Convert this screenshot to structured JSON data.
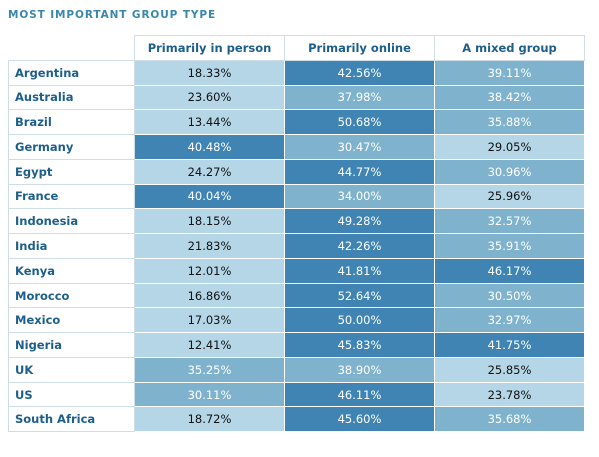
{
  "title": "MOST IMPORTANT GROUP TYPE",
  "chart_data": {
    "type": "table",
    "columns": [
      "Primarily in person",
      "Primarily online",
      "A mixed group"
    ],
    "rows": [
      {
        "country": "Argentina",
        "values": [
          "18.33%",
          "42.56%",
          "39.11%"
        ]
      },
      {
        "country": "Australia",
        "values": [
          "23.60%",
          "37.98%",
          "38.42%"
        ]
      },
      {
        "country": "Brazil",
        "values": [
          "13.44%",
          "50.68%",
          "35.88%"
        ]
      },
      {
        "country": "Germany",
        "values": [
          "40.48%",
          "30.47%",
          "29.05%"
        ]
      },
      {
        "country": "Egypt",
        "values": [
          "24.27%",
          "44.77%",
          "30.96%"
        ]
      },
      {
        "country": "France",
        "values": [
          "40.04%",
          "34.00%",
          "25.96%"
        ]
      },
      {
        "country": "Indonesia",
        "values": [
          "18.15%",
          "49.28%",
          "32.57%"
        ]
      },
      {
        "country": "India",
        "values": [
          "21.83%",
          "42.26%",
          "35.91%"
        ]
      },
      {
        "country": "Kenya",
        "values": [
          "12.01%",
          "41.81%",
          "46.17%"
        ]
      },
      {
        "country": "Morocco",
        "values": [
          "16.86%",
          "52.64%",
          "30.50%"
        ]
      },
      {
        "country": "Mexico",
        "values": [
          "17.03%",
          "50.00%",
          "32.97%"
        ]
      },
      {
        "country": "Nigeria",
        "values": [
          "12.41%",
          "45.83%",
          "41.75%"
        ]
      },
      {
        "country": "UK",
        "values": [
          "35.25%",
          "38.90%",
          "25.85%"
        ]
      },
      {
        "country": "US",
        "values": [
          "30.11%",
          "46.11%",
          "23.78%"
        ]
      },
      {
        "country": "South Africa",
        "values": [
          "18.72%",
          "45.60%",
          "35.68%"
        ]
      }
    ]
  },
  "colors": {
    "level_1": "#b5d6e7",
    "level_2": "#7fb3cd",
    "level_3": "#3f84b3",
    "text_dark": "#111111",
    "text_light": "#ffffff",
    "header_text": "#1d5f8a"
  }
}
